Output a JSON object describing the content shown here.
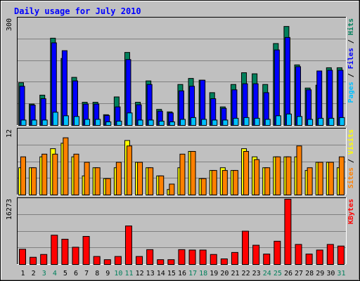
{
  "title": "Daily usage for July 2010",
  "days": [
    "1",
    "2",
    "3",
    "4",
    "5",
    "6",
    "7",
    "8",
    "9",
    "10",
    "11",
    "12",
    "13",
    "14",
    "15",
    "16",
    "17",
    "18",
    "19",
    "20",
    "21",
    "22",
    "23",
    "24",
    "25",
    "26",
    "27",
    "28",
    "29",
    "30",
    "31"
  ],
  "weekend_days": [
    "3",
    "4",
    "10",
    "11",
    "17",
    "18",
    "24",
    "25",
    "31"
  ],
  "colors": {
    "background": "#c0c0c0",
    "frame": "#000000",
    "gridline": "#808080",
    "title": "#0000ff",
    "weekday_label": "#000000",
    "weekend_label": "#00805c",
    "hits": "#00805c",
    "files": "#0000ff",
    "pages": "#00c0ff",
    "visits": "#ffff00",
    "sites": "#ff8000",
    "kbytes": "#ff0000"
  },
  "chart_data": [
    {
      "type": "bar",
      "panel": "top",
      "ylabel": "Pages / Files / Hits",
      "ytick": "300",
      "ylim": [
        0,
        300
      ],
      "series": [
        {
          "name": "Hits",
          "values": [
            120,
            60,
            85,
            245,
            188,
            135,
            65,
            65,
            30,
            80,
            205,
            65,
            125,
            45,
            38,
            115,
            132,
            127,
            92,
            52,
            115,
            148,
            145,
            115,
            230,
            278,
            170,
            105,
            113,
            162,
            162
          ]
        },
        {
          "name": "Files",
          "values": [
            110,
            57,
            75,
            232,
            210,
            125,
            60,
            60,
            28,
            52,
            185,
            58,
            115,
            40,
            35,
            97,
            110,
            127,
            75,
            48,
            100,
            117,
            117,
            92,
            212,
            247,
            165,
            100,
            153,
            155,
            155
          ]
        },
        {
          "name": "Pages",
          "values": [
            15,
            15,
            15,
            37,
            27,
            25,
            17,
            17,
            10,
            12,
            35,
            15,
            15,
            12,
            10,
            17,
            22,
            17,
            15,
            15,
            20,
            22,
            20,
            17,
            27,
            32,
            25,
            17,
            20,
            20,
            22
          ]
        }
      ]
    },
    {
      "type": "bar",
      "panel": "middle",
      "ylabel": "Sites / Visits",
      "ytick": "12",
      "ylim": [
        0,
        12
      ],
      "series": [
        {
          "name": "Visits",
          "values": [
            5,
            5,
            7,
            8.5,
            9.5,
            7,
            3.5,
            5,
            3,
            5,
            10,
            6,
            5,
            3.5,
            1,
            5,
            8,
            3,
            4.5,
            5,
            4.5,
            8.5,
            7,
            5,
            7,
            7,
            7,
            4.5,
            6,
            6,
            5
          ]
        },
        {
          "name": "Sites",
          "values": [
            7,
            5,
            7.5,
            7.5,
            10.5,
            7.5,
            6,
            5,
            3,
            6,
            9,
            6,
            5,
            3.5,
            2,
            7.5,
            8,
            3,
            4.5,
            4.5,
            4.5,
            8,
            6.5,
            5,
            7,
            7,
            9,
            5,
            6,
            6,
            7
          ]
        }
      ]
    },
    {
      "type": "bar",
      "panel": "bottom",
      "ylabel": "KBytes",
      "ytick": "16273",
      "ylim": [
        0,
        16273
      ],
      "series": [
        {
          "name": "KBytes",
          "values": [
            3800,
            1800,
            2500,
            7300,
            6300,
            4300,
            7000,
            2000,
            1200,
            2000,
            9600,
            2000,
            3700,
            1200,
            1200,
            3700,
            3600,
            3600,
            2500,
            1400,
            3000,
            8300,
            4800,
            2600,
            5800,
            16273,
            5000,
            2600,
            3600,
            5000,
            4600
          ]
        }
      ]
    }
  ]
}
